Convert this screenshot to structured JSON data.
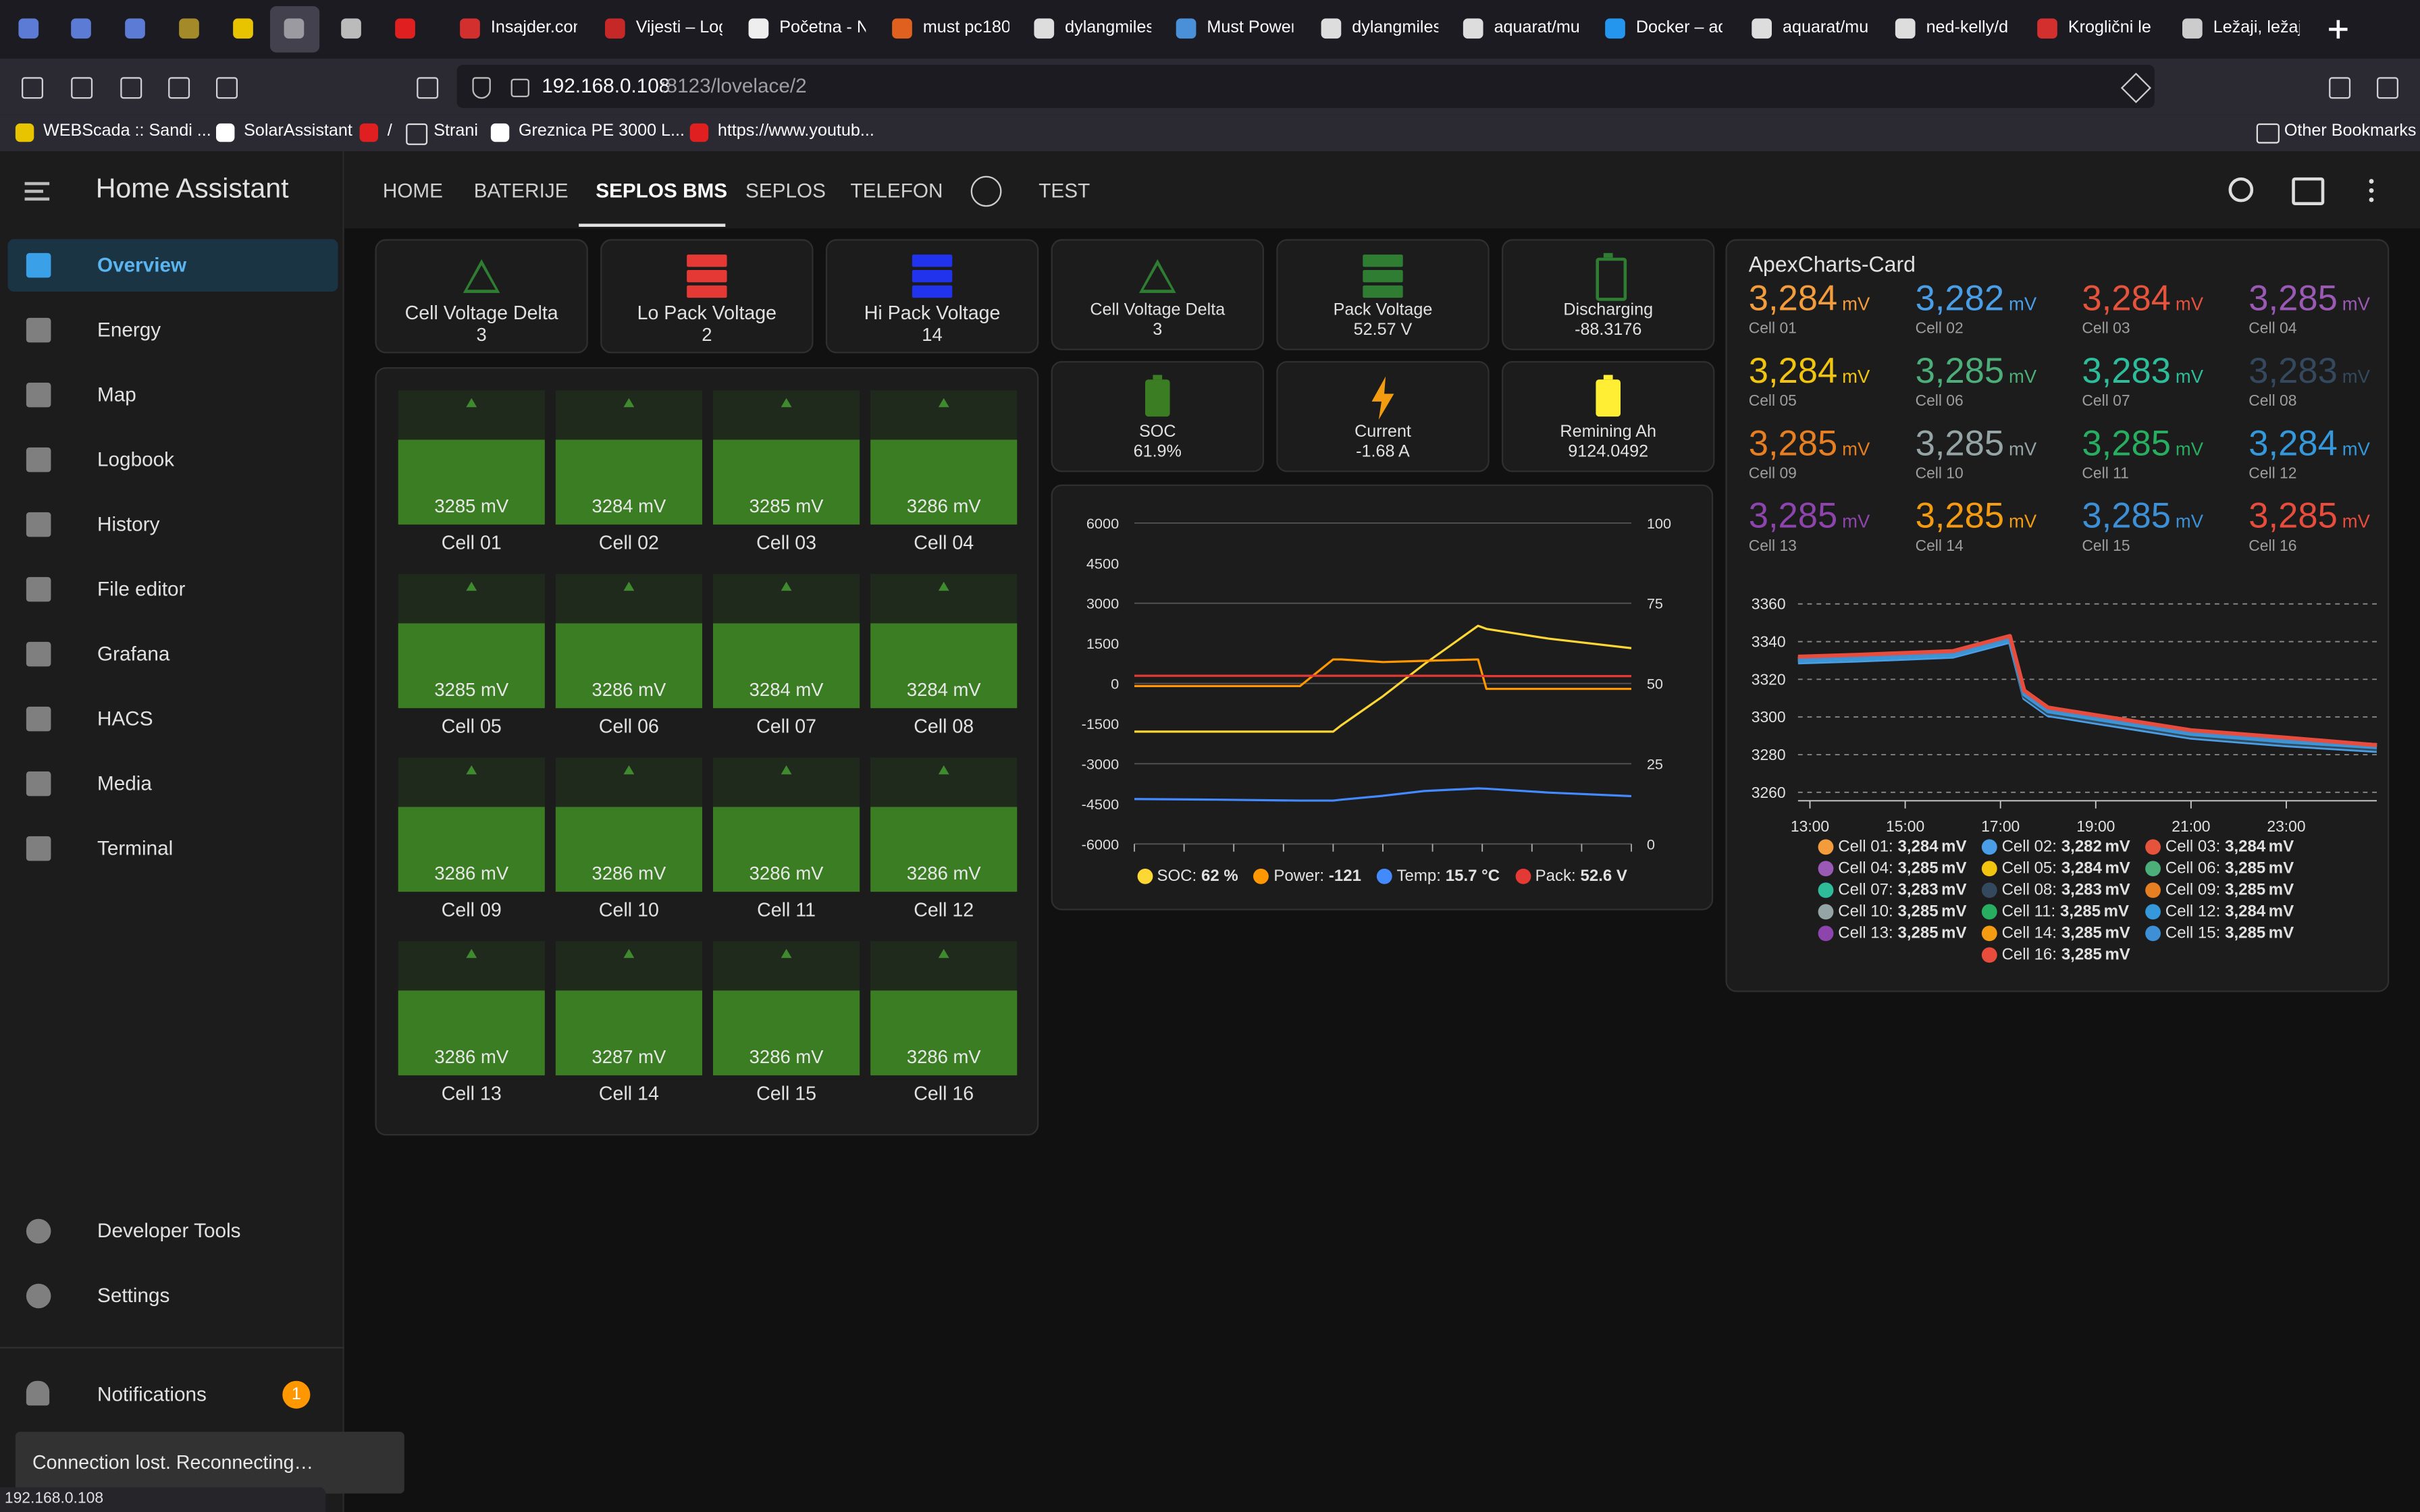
{
  "browser": {
    "tabs": [
      "Insajder.com",
      "Vijesti – Log",
      "Početna - N",
      "must pc180",
      "dylangmiles",
      "Must Power",
      "dylangmiles",
      "aquarat/mu",
      "Docker – aq",
      "aquarat/mu",
      "ned-kelly/d",
      "Kroglični le",
      "Ležaji, ležaj"
    ],
    "url_host": "192.168.0.108",
    "url_path": ":8123/lovelace/2",
    "bookmarks": [
      "WEBScada :: Sandi ...",
      "SolarAssistant",
      "/",
      "Strani",
      "Greznica PE 3000 L...",
      "https://www.youtub..."
    ],
    "other_bookmarks": "Other Bookmarks",
    "status_url": "192.168.0.108"
  },
  "sidebar": {
    "title": "Home Assistant",
    "items": [
      "Overview",
      "Energy",
      "Map",
      "Logbook",
      "History",
      "File editor",
      "Grafana",
      "HACS",
      "Media",
      "Terminal"
    ],
    "bottom_items": [
      "Developer Tools",
      "Settings"
    ],
    "notifications": "Notifications",
    "notification_count": 1
  },
  "toast": "Connection lost. Reconnecting…",
  "view_tabs": [
    "HOME",
    "BATERIJE",
    "SEPLOS BMS",
    "SEPLOS",
    "TELEFON",
    "TEST"
  ],
  "status_cards": [
    {
      "title": "Cell Voltage Delta",
      "value": 3
    },
    {
      "title": "Lo Pack Voltage",
      "value": 2
    },
    {
      "title": "Hi Pack Voltage",
      "value": 14
    }
  ],
  "cells": [
    {
      "name": "Cell 01",
      "value": "3285 mV"
    },
    {
      "name": "Cell 02",
      "value": "3284 mV"
    },
    {
      "name": "Cell 03",
      "value": "3285 mV"
    },
    {
      "name": "Cell 04",
      "value": "3286 mV"
    },
    {
      "name": "Cell 05",
      "value": "3285 mV"
    },
    {
      "name": "Cell 06",
      "value": "3286 mV"
    },
    {
      "name": "Cell 07",
      "value": "3284 mV"
    },
    {
      "name": "Cell 08",
      "value": "3284 mV"
    },
    {
      "name": "Cell 09",
      "value": "3286 mV"
    },
    {
      "name": "Cell 10",
      "value": "3286 mV"
    },
    {
      "name": "Cell 11",
      "value": "3286 mV"
    },
    {
      "name": "Cell 12",
      "value": "3286 mV"
    },
    {
      "name": "Cell 13",
      "value": "3286 mV"
    },
    {
      "name": "Cell 14",
      "value": "3287 mV"
    },
    {
      "name": "Cell 15",
      "value": "3286 mV"
    },
    {
      "name": "Cell 16",
      "value": "3286 mV"
    }
  ],
  "info_cards": [
    {
      "title": "Cell Voltage Delta",
      "value": "3"
    },
    {
      "title": "Pack Voltage",
      "value": "52.57 V"
    },
    {
      "title": "Discharging",
      "value": "-88.3176"
    },
    {
      "title": "SOC",
      "value": "61.9%"
    },
    {
      "title": "Current",
      "value": "-1.68 A"
    },
    {
      "title": "Remining Ah",
      "value": "9124.0492"
    }
  ],
  "power_chart": {
    "type": "line",
    "x": [
      0,
      2,
      4,
      4.8,
      5,
      6,
      7,
      8.3,
      8.5,
      10,
      12
    ],
    "xlim": [
      0,
      12
    ],
    "ylim": [
      -6000,
      6000
    ],
    "yticks": [
      6000,
      4500,
      3000,
      1500,
      0,
      -1500,
      -3000,
      -4500,
      -6000
    ],
    "y2lim": [
      0,
      100
    ],
    "y2ticks": [
      100,
      75,
      50,
      25,
      0
    ],
    "series": [
      {
        "name": "SOC",
        "color": "#fdd835",
        "axis": "y2",
        "legend_value": "62 %",
        "values": [
          35,
          35,
          35,
          35,
          37,
          46,
          56,
          68,
          67,
          64,
          61
        ]
      },
      {
        "name": "Power",
        "color": "#ff9800",
        "legend_value": "-121",
        "values": [
          -100,
          -100,
          -100,
          900,
          900,
          800,
          850,
          900,
          -200,
          -200,
          -200
        ]
      },
      {
        "name": "Temp",
        "color": "#448aff",
        "axis": "y2",
        "legend_value": "15.7 °C",
        "values": [
          14,
          13.8,
          13.5,
          13.5,
          13.8,
          15,
          16.5,
          17.3,
          17.2,
          16,
          14.9
        ]
      },
      {
        "name": "Pack",
        "color": "#e53935",
        "axis": "y2",
        "legend_value": "52.6 V",
        "values": [
          52.4,
          52.4,
          52.4,
          52.4,
          52.4,
          52.4,
          52.4,
          52.4,
          52.3,
          52.3,
          52.3
        ]
      }
    ]
  },
  "apex_chart": {
    "type": "line",
    "title": "ApexCharts-Card",
    "unit": "mV",
    "x": [
      12.75,
      14,
      15,
      16,
      17.2,
      17.5,
      18,
      19,
      20,
      21,
      22,
      23,
      24.9
    ],
    "xlim": [
      12.75,
      24.9
    ],
    "xticks": [
      {
        "value": 13,
        "label": "13:00"
      },
      {
        "value": 15,
        "label": "15:00"
      },
      {
        "value": 17,
        "label": "17:00"
      },
      {
        "value": 19,
        "label": "19:00"
      },
      {
        "value": 21,
        "label": "21:00"
      },
      {
        "value": 23,
        "label": "23:00"
      }
    ],
    "ylim": [
      3258,
      3362
    ],
    "yticks": [
      3360,
      3340,
      3320,
      3300,
      3280,
      3260
    ],
    "series": [
      {
        "name": "Cell 01",
        "color": "#f39c3c",
        "current": "3,284",
        "values": [
          3330,
          3331,
          3332,
          3333,
          3341,
          3312,
          3303,
          3299,
          3295,
          3291,
          3289,
          3287,
          3284
        ]
      },
      {
        "name": "Cell 02",
        "color": "#4a9ee8",
        "current": "3,282",
        "values": [
          3329,
          3330,
          3331,
          3332,
          3340,
          3310,
          3301,
          3297,
          3293,
          3289,
          3287,
          3285,
          3282
        ]
      },
      {
        "name": "Cell 03",
        "color": "#e5533d",
        "current": "3,284",
        "values": [
          3331,
          3332,
          3333,
          3334,
          3342,
          3313,
          3304,
          3300,
          3296,
          3292,
          3290,
          3288,
          3284
        ]
      },
      {
        "name": "Cell 04",
        "color": "#9b59b6",
        "current": "3,285",
        "values": [
          3331,
          3332,
          3333,
          3334,
          3342,
          3313,
          3304,
          3300,
          3296,
          3292,
          3290,
          3288,
          3285
        ]
      },
      {
        "name": "Cell 05",
        "color": "#f1c40f",
        "current": "3,284",
        "values": [
          3330,
          3331,
          3332,
          3333,
          3341,
          3312,
          3303,
          3299,
          3295,
          3291,
          3289,
          3287,
          3284
        ]
      },
      {
        "name": "Cell 06",
        "color": "#4caf7a",
        "current": "3,285",
        "values": [
          3331,
          3332,
          3333,
          3334,
          3342,
          3313,
          3304,
          3300,
          3296,
          3292,
          3290,
          3288,
          3285
        ]
      },
      {
        "name": "Cell 07",
        "color": "#2ebd9a",
        "current": "3,283",
        "values": [
          3330,
          3331,
          3332,
          3333,
          3341,
          3311,
          3302,
          3298,
          3294,
          3290,
          3288,
          3286,
          3283
        ]
      },
      {
        "name": "Cell 08",
        "color": "#34495e",
        "current": "3,283",
        "values": [
          3330,
          3331,
          3332,
          3333,
          3341,
          3311,
          3302,
          3298,
          3294,
          3290,
          3288,
          3286,
          3283
        ]
      },
      {
        "name": "Cell 09",
        "color": "#e67e22",
        "current": "3,285",
        "values": [
          3331,
          3332,
          3333,
          3334,
          3342,
          3313,
          3304,
          3300,
          3296,
          3292,
          3290,
          3288,
          3285
        ]
      },
      {
        "name": "Cell 10",
        "color": "#95a5a6",
        "current": "3,285",
        "values": [
          3331,
          3332,
          3333,
          3334,
          3342,
          3313,
          3304,
          3300,
          3296,
          3292,
          3290,
          3288,
          3285
        ]
      },
      {
        "name": "Cell 11",
        "color": "#27ae60",
        "current": "3,285",
        "values": [
          3331,
          3332,
          3333,
          3334,
          3342,
          3313,
          3304,
          3300,
          3296,
          3292,
          3290,
          3288,
          3285
        ]
      },
      {
        "name": "Cell 12",
        "color": "#3498db",
        "current": "3,284",
        "values": [
          3330,
          3331,
          3332,
          3333,
          3341,
          3312,
          3303,
          3299,
          3295,
          3291,
          3289,
          3287,
          3284
        ]
      },
      {
        "name": "Cell 13",
        "color": "#8e44ad",
        "current": "3,285",
        "values": [
          3331,
          3332,
          3333,
          3334,
          3342,
          3313,
          3304,
          3300,
          3296,
          3292,
          3290,
          3288,
          3285
        ]
      },
      {
        "name": "Cell 14",
        "color": "#f39c12",
        "current": "3,285",
        "values": [
          3331,
          3332,
          3333,
          3334,
          3342,
          3313,
          3304,
          3300,
          3296,
          3292,
          3290,
          3288,
          3285
        ]
      },
      {
        "name": "Cell 15",
        "color": "#3d8fd6",
        "current": "3,285",
        "values": [
          3331,
          3332,
          3333,
          3334,
          3342,
          3313,
          3304,
          3300,
          3296,
          3292,
          3290,
          3288,
          3285
        ]
      },
      {
        "name": "Cell 16",
        "color": "#e74c3c",
        "current": "3,285",
        "values": [
          3332,
          3333,
          3334,
          3335,
          3343,
          3314,
          3305,
          3301,
          3297,
          3293,
          3291,
          3289,
          3285
        ]
      }
    ]
  }
}
